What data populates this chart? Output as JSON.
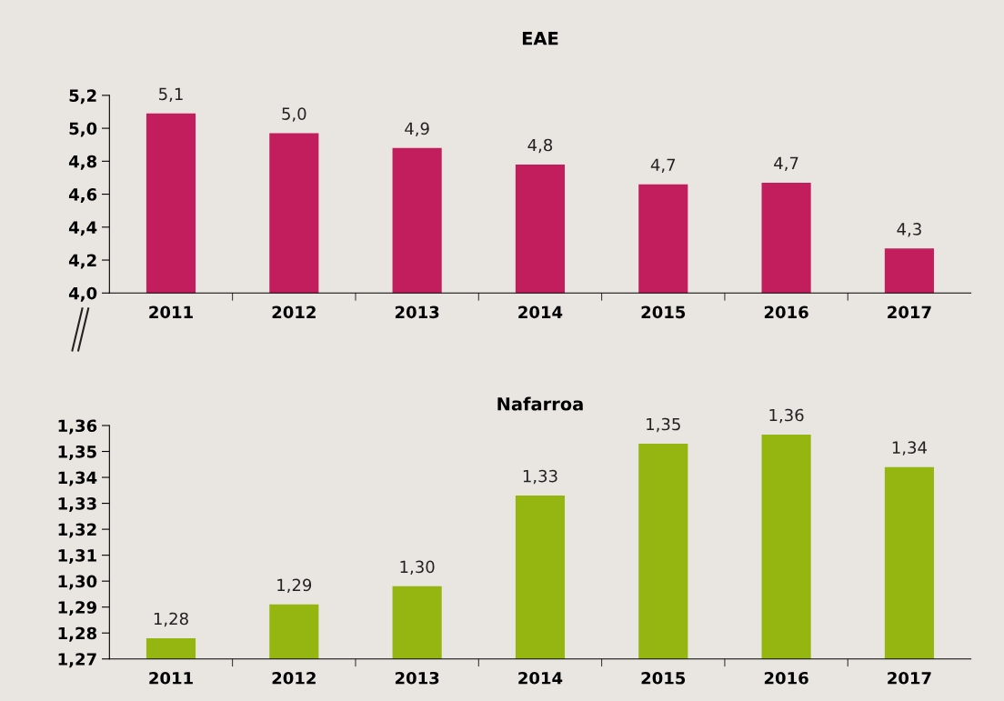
{
  "chart_data": [
    {
      "type": "bar",
      "title": "EAE",
      "categories": [
        "2011",
        "2012",
        "2013",
        "2014",
        "2015",
        "2016",
        "2017"
      ],
      "series": [
        {
          "color": "#c21d5d",
          "values": [
            5.09,
            4.97,
            4.88,
            4.78,
            4.66,
            4.67,
            4.27
          ],
          "value_labels": [
            "5,1",
            "5,0",
            "4,9",
            "4,8",
            "4,7",
            "4,7",
            "4,3"
          ]
        }
      ],
      "ylim": [
        4.0,
        5.2
      ],
      "yticks": [
        {
          "value": 4.0,
          "label": "4,0"
        },
        {
          "value": 4.2,
          "label": "4,2"
        },
        {
          "value": 4.4,
          "label": "4,4"
        },
        {
          "value": 4.6,
          "label": "4,6"
        },
        {
          "value": 4.8,
          "label": "4,8"
        },
        {
          "value": 5.0,
          "label": "5,0"
        },
        {
          "value": 5.2,
          "label": "5,2"
        }
      ],
      "grid": false,
      "legend": false
    },
    {
      "type": "bar",
      "title": "Nafarroa",
      "categories": [
        "2011",
        "2012",
        "2013",
        "2014",
        "2015",
        "2016",
        "2017"
      ],
      "series": [
        {
          "color": "#95b511",
          "values": [
            1.278,
            1.291,
            1.298,
            1.333,
            1.353,
            1.3565,
            1.344
          ],
          "value_labels": [
            "1,28",
            "1,29",
            "1,30",
            "1,33",
            "1,35",
            "1,36",
            "1,34"
          ]
        }
      ],
      "ylim": [
        1.27,
        1.36
      ],
      "yticks": [
        {
          "value": 1.27,
          "label": "1,27"
        },
        {
          "value": 1.28,
          "label": "1,28"
        },
        {
          "value": 1.29,
          "label": "1,29"
        },
        {
          "value": 1.3,
          "label": "1,30"
        },
        {
          "value": 1.31,
          "label": "1,31"
        },
        {
          "value": 1.32,
          "label": "1,32"
        },
        {
          "value": 1.33,
          "label": "1,33"
        },
        {
          "value": 1.34,
          "label": "1,34"
        },
        {
          "value": 1.35,
          "label": "1,35"
        },
        {
          "value": 1.36,
          "label": "1,36"
        }
      ],
      "grid": false,
      "legend": false
    }
  ]
}
